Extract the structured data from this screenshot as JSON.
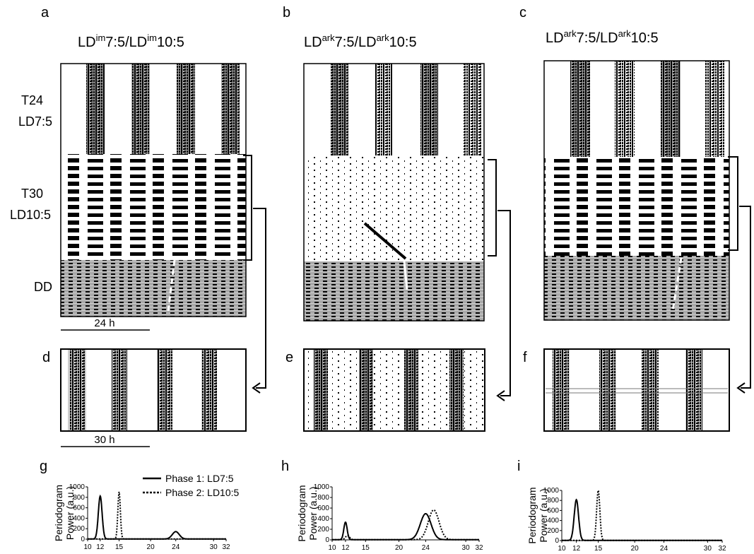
{
  "colors": {
    "ink": "#000000",
    "shade": "#a9a9a9",
    "bg": "#ffffff"
  },
  "panel_letters": {
    "a": "a",
    "b": "b",
    "c": "c",
    "d": "d",
    "e": "e",
    "f": "f",
    "g": "g",
    "h": "h",
    "i": "i"
  },
  "titles": {
    "a": {
      "p1": "LD",
      "s1": "im",
      "p2": "7:5/LD",
      "s2": "im",
      "p3": "10:5"
    },
    "b": {
      "p1": "LD",
      "s1": "ark",
      "p2": "7:5/LD",
      "s2": "ark",
      "p3": "10:5"
    },
    "c": {
      "p1": "LD",
      "s1": "ark",
      "p2": "7:5/LD",
      "s2": "ark",
      "p3": "10:5"
    }
  },
  "row_labels": {
    "t24": "T24",
    "ld75": "LD7:5",
    "t30": "T30",
    "ld105": "LD10:5",
    "dd": "DD"
  },
  "scale_bars": {
    "top": "24 h",
    "bottom": "30 h"
  },
  "periodogram": {
    "ylabel_line1": "Periodogram",
    "ylabel_line2": "Power (a.u.)",
    "legend": {
      "phase1": "Phase 1: LD7:5",
      "phase2": "Phase 2: LD10:5"
    },
    "y_ticks": [
      "0",
      "200",
      "400",
      "600",
      "800",
      "1000"
    ],
    "x_ticks": [
      "10",
      "12",
      "15",
      "20",
      "24",
      "30",
      "32"
    ]
  },
  "chart_data": [
    {
      "panel": "g",
      "type": "line",
      "xlim": [
        10,
        32
      ],
      "ylim": [
        0,
        1000
      ],
      "series": [
        {
          "name": "Phase 1: LD7:5",
          "style": "solid",
          "peaks": [
            {
              "x": 12,
              "y": 820,
              "w": 0.3
            },
            {
              "x": 24,
              "y": 140,
              "w": 0.55
            }
          ]
        },
        {
          "name": "Phase 2: LD10:5",
          "style": "dotted",
          "peaks": [
            {
              "x": 15,
              "y": 900,
              "w": 0.2
            }
          ]
        }
      ]
    },
    {
      "panel": "h",
      "type": "line",
      "xlim": [
        10,
        32
      ],
      "ylim": [
        0,
        1000
      ],
      "series": [
        {
          "name": "Phase 1: LD7:5",
          "style": "solid",
          "peaks": [
            {
              "x": 12,
              "y": 330,
              "w": 0.25
            },
            {
              "x": 24,
              "y": 490,
              "w": 0.8
            }
          ]
        },
        {
          "name": "Phase 2: LD10:5",
          "style": "dotted",
          "peaks": [
            {
              "x": 12.3,
              "y": 80,
              "w": 0.3
            },
            {
              "x": 25.2,
              "y": 560,
              "w": 0.8
            }
          ]
        }
      ]
    },
    {
      "panel": "i",
      "type": "line",
      "xlim": [
        10,
        32
      ],
      "ylim": [
        0,
        1000
      ],
      "series": [
        {
          "name": "Phase 1: LD7:5",
          "style": "solid",
          "peaks": [
            {
              "x": 12,
              "y": 810,
              "w": 0.3
            }
          ]
        },
        {
          "name": "Phase 2: LD10:5",
          "style": "dotted",
          "peaks": [
            {
              "x": 15,
              "y": 1000,
              "w": 0.22
            }
          ]
        }
      ]
    }
  ]
}
